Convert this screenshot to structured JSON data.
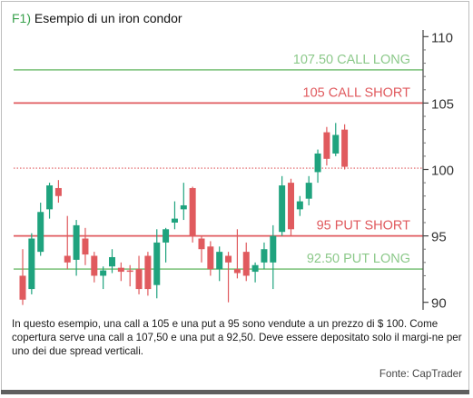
{
  "figure": {
    "tag": "F1)",
    "title": "Esempio di un iron condor"
  },
  "caption": "In questo esempio, una call a 105 e una put a 95 sono vendute a un prezzo di $ 100. Come copertura serve una call a 107,50 e una put a 92,50. Deve essere depositato solo il margi-ne per uno dei due spread verticali.",
  "source": "Fonte: CapTrader",
  "chart_data": {
    "type": "candlestick",
    "title": "Esempio di un iron condor",
    "ylim": [
      89.5,
      110.5
    ],
    "y_ticks": [
      90,
      95,
      100,
      105,
      110
    ],
    "y_tick_labels": [
      "90",
      "95",
      "100",
      "105",
      "110"
    ],
    "grid": false,
    "colors": {
      "up": "#1fa37e",
      "down": "#e05a5e",
      "long_line": "#8cc98a",
      "short_line": "#e05a5e",
      "price_line": "#e05a5e"
    },
    "reference_lines": [
      {
        "value": 107.5,
        "label": "107.50 CALL LONG",
        "style": "long"
      },
      {
        "value": 105,
        "label": "105 CALL SHORT",
        "style": "short"
      },
      {
        "value": 95,
        "label": "95 PUT SHORT",
        "style": "short"
      },
      {
        "value": 92.5,
        "label": "92.50 PUT LONG",
        "style": "long"
      }
    ],
    "price_line": {
      "value": 100.1
    },
    "candles": [
      {
        "open": 92.0,
        "high": 94.0,
        "low": 89.8,
        "close": 90.2
      },
      {
        "open": 91.0,
        "high": 95.2,
        "low": 90.6,
        "close": 94.8
      },
      {
        "open": 93.8,
        "high": 97.5,
        "low": 93.5,
        "close": 96.8
      },
      {
        "open": 97.0,
        "high": 99.0,
        "low": 96.3,
        "close": 98.8
      },
      {
        "open": 98.6,
        "high": 99.2,
        "low": 97.5,
        "close": 98.0
      },
      {
        "open": 93.5,
        "high": 96.5,
        "low": 92.5,
        "close": 93.0
      },
      {
        "open": 93.2,
        "high": 96.2,
        "low": 92.0,
        "close": 95.8
      },
      {
        "open": 94.8,
        "high": 95.6,
        "low": 92.8,
        "close": 93.6
      },
      {
        "open": 93.5,
        "high": 93.8,
        "low": 91.5,
        "close": 92.0
      },
      {
        "open": 92.0,
        "high": 92.7,
        "low": 91.0,
        "close": 92.4
      },
      {
        "open": 92.7,
        "high": 94.0,
        "low": 92.2,
        "close": 93.4
      },
      {
        "open": 92.6,
        "high": 93.0,
        "low": 91.6,
        "close": 92.3
      },
      {
        "open": 92.4,
        "high": 92.8,
        "low": 91.2,
        "close": 92.3
      },
      {
        "open": 92.5,
        "high": 93.5,
        "low": 90.6,
        "close": 91.0
      },
      {
        "open": 93.5,
        "high": 93.8,
        "low": 90.5,
        "close": 91.0
      },
      {
        "open": 91.3,
        "high": 95.5,
        "low": 90.3,
        "close": 94.5
      },
      {
        "open": 94.5,
        "high": 95.6,
        "low": 93.0,
        "close": 95.5
      },
      {
        "open": 96.0,
        "high": 97.6,
        "low": 95.5,
        "close": 96.3
      },
      {
        "open": 97.0,
        "high": 99.0,
        "low": 96.2,
        "close": 97.3
      },
      {
        "open": 98.6,
        "high": 98.7,
        "low": 94.5,
        "close": 95.0
      },
      {
        "open": 94.8,
        "high": 95.0,
        "low": 93.0,
        "close": 94.0
      },
      {
        "open": 94.2,
        "high": 94.6,
        "low": 92.0,
        "close": 92.5
      },
      {
        "open": 92.5,
        "high": 94.2,
        "low": 91.6,
        "close": 93.8
      },
      {
        "open": 93.5,
        "high": 93.8,
        "low": 90.0,
        "close": 93.0
      },
      {
        "open": 92.5,
        "high": 95.5,
        "low": 91.8,
        "close": 92.2
      },
      {
        "open": 93.8,
        "high": 94.5,
        "low": 91.6,
        "close": 92.0
      },
      {
        "open": 92.3,
        "high": 93.0,
        "low": 91.5,
        "close": 92.8
      },
      {
        "open": 93.0,
        "high": 94.5,
        "low": 92.5,
        "close": 94.0
      },
      {
        "open": 93.0,
        "high": 95.8,
        "low": 91.0,
        "close": 95.0
      },
      {
        "open": 95.3,
        "high": 99.5,
        "low": 95.0,
        "close": 98.8
      },
      {
        "open": 99.0,
        "high": 99.3,
        "low": 95.0,
        "close": 95.5
      },
      {
        "open": 97.0,
        "high": 98.0,
        "low": 96.5,
        "close": 97.6
      },
      {
        "open": 97.8,
        "high": 99.5,
        "low": 97.3,
        "close": 99.0
      },
      {
        "open": 99.8,
        "high": 101.5,
        "low": 99.0,
        "close": 101.2
      },
      {
        "open": 102.8,
        "high": 103.2,
        "low": 100.3,
        "close": 100.8
      },
      {
        "open": 101.2,
        "high": 103.5,
        "low": 101.0,
        "close": 102.6
      },
      {
        "open": 103.0,
        "high": 103.4,
        "low": 100.0,
        "close": 100.2
      }
    ]
  }
}
